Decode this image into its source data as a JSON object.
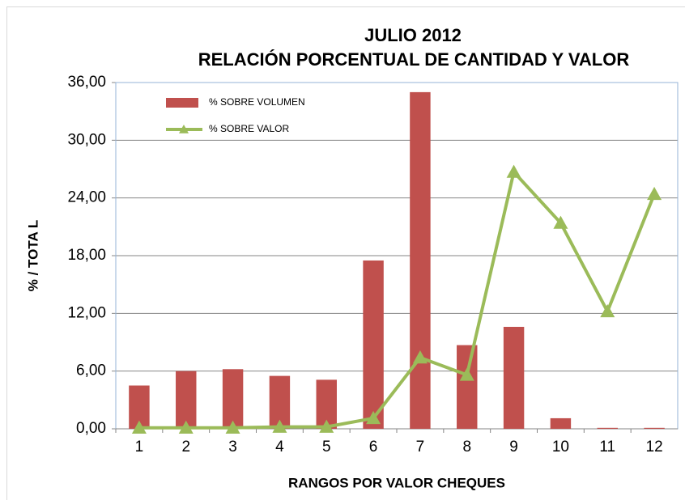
{
  "chart_data": {
    "type": "bar_line",
    "title": "JULIO  2012",
    "subtitle": "RELACIÓN PORCENTUAL  DE CANTIDAD  Y VALOR",
    "x_label": "RANGOS POR VALOR CHEQUES",
    "y_label": "%  /    TOTA L",
    "categories": [
      "1",
      "2",
      "3",
      "4",
      "5",
      "6",
      "7",
      "8",
      "9",
      "10",
      "11",
      "12"
    ],
    "series": [
      {
        "name": "% SOBRE VOLUMEN",
        "type": "bar",
        "color": "#c0504d",
        "values": [
          4.5,
          6.0,
          6.2,
          5.5,
          5.1,
          17.5,
          35.0,
          8.7,
          10.6,
          1.1,
          0.1,
          0.1
        ]
      },
      {
        "name": "% SOBRE VALOR",
        "type": "line",
        "color": "#9bbb59",
        "values": [
          0.1,
          0.1,
          0.1,
          0.2,
          0.2,
          1.1,
          7.4,
          5.6,
          26.7,
          21.4,
          12.2,
          24.4
        ]
      }
    ],
    "ylim": [
      0,
      36
    ],
    "yticks": [
      {
        "value": 0,
        "label": "0,00"
      },
      {
        "value": 6,
        "label": "6,00"
      },
      {
        "value": 12,
        "label": "12,00"
      },
      {
        "value": 18,
        "label": "18,00"
      },
      {
        "value": 24,
        "label": "24,00"
      },
      {
        "value": 30,
        "label": "30,00"
      },
      {
        "value": 36,
        "label": "36,00"
      }
    ],
    "grid": true,
    "legend": "top-left"
  }
}
